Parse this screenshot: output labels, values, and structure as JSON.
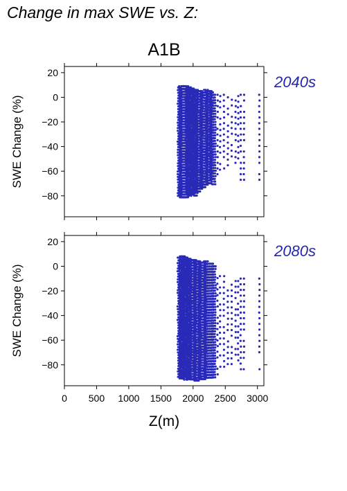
{
  "title": "Change in max SWE vs. Z:",
  "scenario": "A1B",
  "colors": {
    "points": "#2a2ab8",
    "panel_label": "#2226b0",
    "axes": "#000000"
  },
  "chart_data": [
    {
      "type": "scatter",
      "panel_label": "2040s",
      "ylabel": "SWE Change (%)",
      "xlim": [
        0,
        3100
      ],
      "ylim": [
        -97,
        25
      ],
      "yticks": [
        20,
        0,
        -20,
        -40,
        -60,
        -80
      ],
      "ytick_labels": [
        "20",
        "0",
        "−20",
        "−40",
        "−60",
        "−80"
      ],
      "xticks": [
        0,
        500,
        1000,
        1500,
        2000,
        2500,
        3000
      ],
      "columns": [
        {
          "x": 1790,
          "ymin": -82,
          "ymax": 8,
          "dense": true
        },
        {
          "x": 1815,
          "ymin": -83,
          "ymax": 9,
          "dense": true
        },
        {
          "x": 1840,
          "ymin": -83,
          "ymax": 9,
          "dense": true
        },
        {
          "x": 1865,
          "ymin": -82,
          "ymax": 9,
          "dense": true
        },
        {
          "x": 1890,
          "ymin": -83,
          "ymax": 9,
          "dense": true
        },
        {
          "x": 1915,
          "ymin": -80,
          "ymax": 8,
          "dense": true
        },
        {
          "x": 1940,
          "ymin": -82,
          "ymax": 8,
          "dense": true
        },
        {
          "x": 1965,
          "ymin": -81,
          "ymax": 7,
          "dense": true
        },
        {
          "x": 1990,
          "ymin": -80,
          "ymax": 7,
          "dense": true
        },
        {
          "x": 2015,
          "ymin": -79,
          "ymax": 6,
          "dense": true
        },
        {
          "x": 2040,
          "ymin": -80,
          "ymax": 6,
          "dense": true
        },
        {
          "x": 2065,
          "ymin": -78,
          "ymax": 5,
          "dense": true
        },
        {
          "x": 2090,
          "ymin": -77,
          "ymax": 5,
          "dense": true
        },
        {
          "x": 2115,
          "ymin": -76,
          "ymax": 5,
          "dense": true
        },
        {
          "x": 2140,
          "ymin": -75,
          "ymax": 4,
          "dense": true
        },
        {
          "x": 2170,
          "ymin": -74,
          "ymax": 4,
          "dense": true
        },
        {
          "x": 2200,
          "ymin": -73,
          "ymax": 6,
          "dense": true
        },
        {
          "x": 2230,
          "ymin": -72,
          "ymax": 5,
          "dense": true
        },
        {
          "x": 2260,
          "ymin": -70,
          "ymax": 5,
          "dense": true
        },
        {
          "x": 2290,
          "ymin": -68,
          "ymax": 4,
          "dense": true
        },
        {
          "x": 2320,
          "ymin": -72,
          "ymax": 2,
          "dense": true
        },
        {
          "x": 2380,
          "ymin": -64,
          "ymax": 2,
          "dense": false
        },
        {
          "x": 2420,
          "ymin": -62,
          "ymax": 1,
          "dense": false
        },
        {
          "x": 2480,
          "ymin": -60,
          "ymax": 2,
          "dense": false
        },
        {
          "x": 2540,
          "ymin": -58,
          "ymax": 0,
          "dense": false
        },
        {
          "x": 2600,
          "ymin": -50,
          "ymax": -2,
          "dense": false
        },
        {
          "x": 2660,
          "ymin": -56,
          "ymax": 2,
          "dense": false
        },
        {
          "x": 2700,
          "ymin": -50,
          "ymax": 1,
          "dense": false
        },
        {
          "x": 2740,
          "ymin": -70,
          "ymax": 2,
          "dense": false
        },
        {
          "x": 2790,
          "ymin": -70,
          "ymax": 2,
          "dense": false
        },
        {
          "x": 3030,
          "ymin": -70,
          "ymax": 2,
          "dense": false
        }
      ]
    },
    {
      "type": "scatter",
      "panel_label": "2080s",
      "ylabel": "SWE Change (%)",
      "xlabel": "Z(m)",
      "xlim": [
        0,
        3100
      ],
      "ylim": [
        -97,
        25
      ],
      "yticks": [
        20,
        0,
        -20,
        -40,
        -60,
        -80
      ],
      "ytick_labels": [
        "20",
        "0",
        "−20",
        "−40",
        "−60",
        "−80"
      ],
      "xticks": [
        0,
        500,
        1000,
        1500,
        2000,
        2500,
        3000
      ],
      "xtick_labels": [
        "0",
        "500",
        "1000",
        "1500",
        "2000",
        "2500",
        "3000"
      ],
      "columns": [
        {
          "x": 1790,
          "ymin": -92,
          "ymax": 7,
          "dense": true
        },
        {
          "x": 1815,
          "ymin": -93,
          "ymax": 8,
          "dense": true
        },
        {
          "x": 1840,
          "ymin": -93,
          "ymax": 8,
          "dense": true
        },
        {
          "x": 1865,
          "ymin": -92,
          "ymax": 7,
          "dense": true
        },
        {
          "x": 1890,
          "ymin": -93,
          "ymax": 7,
          "dense": true
        },
        {
          "x": 1915,
          "ymin": -92,
          "ymax": 6,
          "dense": true
        },
        {
          "x": 1940,
          "ymin": -93,
          "ymax": 6,
          "dense": true
        },
        {
          "x": 1965,
          "ymin": -93,
          "ymax": 5,
          "dense": true
        },
        {
          "x": 1990,
          "ymin": -92,
          "ymax": 5,
          "dense": true
        },
        {
          "x": 2015,
          "ymin": -93,
          "ymax": 5,
          "dense": true
        },
        {
          "x": 2040,
          "ymin": -94,
          "ymax": 4,
          "dense": true
        },
        {
          "x": 2065,
          "ymin": -93,
          "ymax": 4,
          "dense": true
        },
        {
          "x": 2090,
          "ymin": -92,
          "ymax": 4,
          "dense": true
        },
        {
          "x": 2115,
          "ymin": -93,
          "ymax": 3,
          "dense": true
        },
        {
          "x": 2140,
          "ymin": -92,
          "ymax": 3,
          "dense": true
        },
        {
          "x": 2170,
          "ymin": -92,
          "ymax": 3,
          "dense": true
        },
        {
          "x": 2200,
          "ymin": -91,
          "ymax": 4,
          "dense": true
        },
        {
          "x": 2230,
          "ymin": -90,
          "ymax": 2,
          "dense": true
        },
        {
          "x": 2260,
          "ymin": -91,
          "ymax": 2,
          "dense": true
        },
        {
          "x": 2290,
          "ymin": -92,
          "ymax": 2,
          "dense": true
        },
        {
          "x": 2320,
          "ymin": -92,
          "ymax": 0,
          "dense": true
        },
        {
          "x": 2380,
          "ymin": -88,
          "ymax": -5,
          "dense": false
        },
        {
          "x": 2420,
          "ymin": -86,
          "ymax": -8,
          "dense": false
        },
        {
          "x": 2480,
          "ymin": -84,
          "ymax": -8,
          "dense": false
        },
        {
          "x": 2540,
          "ymin": -82,
          "ymax": -15,
          "dense": false
        },
        {
          "x": 2600,
          "ymin": -80,
          "ymax": -15,
          "dense": false
        },
        {
          "x": 2660,
          "ymin": -80,
          "ymax": -12,
          "dense": false
        },
        {
          "x": 2700,
          "ymin": -80,
          "ymax": -12,
          "dense": false
        },
        {
          "x": 2740,
          "ymin": -85,
          "ymax": -10,
          "dense": false
        },
        {
          "x": 2790,
          "ymin": -85,
          "ymax": -10,
          "dense": false
        },
        {
          "x": 3030,
          "ymin": -86,
          "ymax": -10,
          "dense": false
        }
      ]
    }
  ]
}
